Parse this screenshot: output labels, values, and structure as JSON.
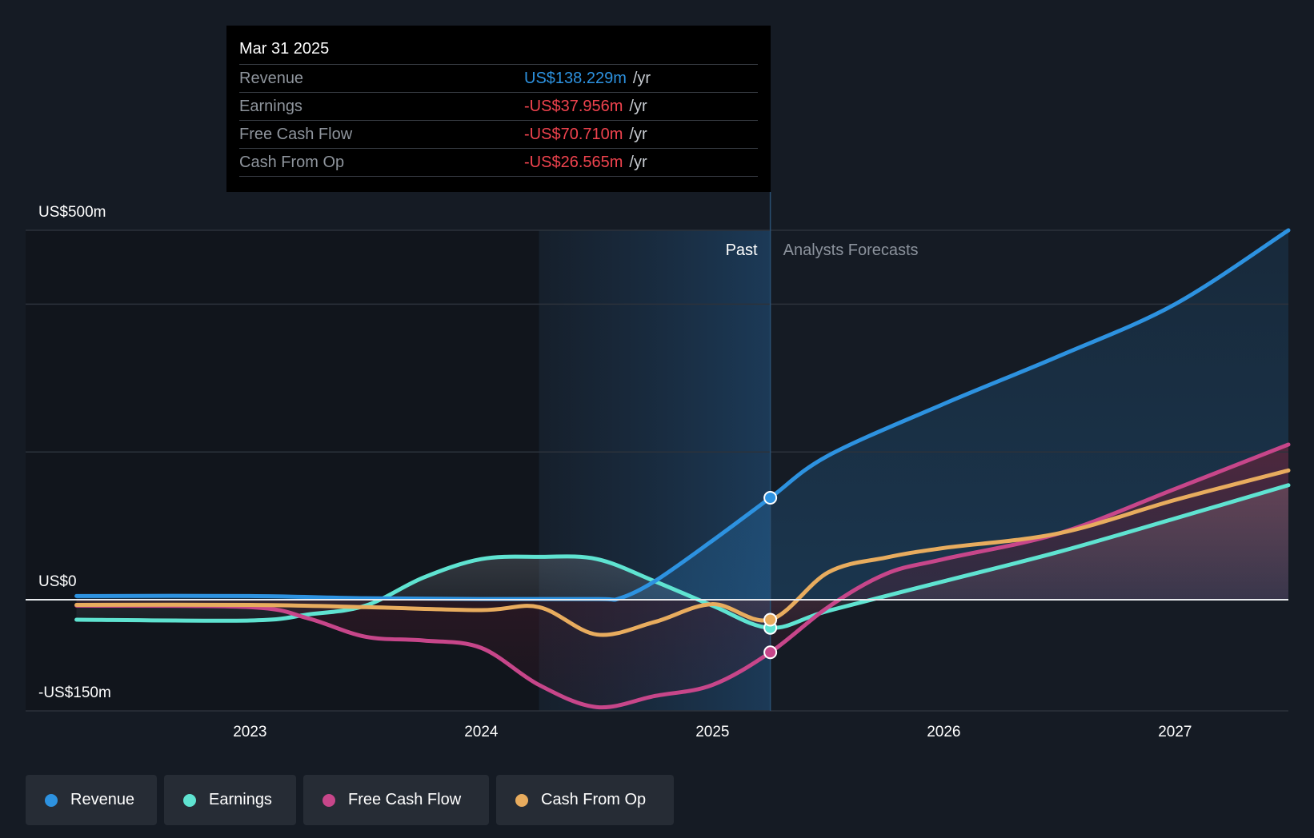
{
  "tooltip": {
    "date": "Mar 31 2025",
    "rows": [
      {
        "label": "Revenue",
        "value": "US$138.229m",
        "unit": "/yr",
        "color": "#2d92e0"
      },
      {
        "label": "Earnings",
        "value": "-US$37.956m",
        "unit": "/yr",
        "color": "#f0434e"
      },
      {
        "label": "Free Cash Flow",
        "value": "-US$70.710m",
        "unit": "/yr",
        "color": "#f0434e"
      },
      {
        "label": "Cash From Op",
        "value": "-US$26.565m",
        "unit": "/yr",
        "color": "#f0434e"
      }
    ]
  },
  "regions": {
    "past_label": "Past",
    "forecast_label": "Analysts Forecasts"
  },
  "legend": [
    {
      "label": "Revenue",
      "color": "#2d92e0"
    },
    {
      "label": "Earnings",
      "color": "#5fe3d1"
    },
    {
      "label": "Free Cash Flow",
      "color": "#c7468a"
    },
    {
      "label": "Cash From Op",
      "color": "#e8ac5e"
    }
  ],
  "chart_data": {
    "type": "line",
    "y_tick_labels": [
      {
        "value": 500,
        "label": "US$500m"
      },
      {
        "value": 0,
        "label": "US$0"
      },
      {
        "value": -150,
        "label": "-US$150m"
      }
    ],
    "x_tick_labels": [
      {
        "value": 2023.0,
        "label": "2023"
      },
      {
        "value": 2024.0,
        "label": "2024"
      },
      {
        "value": 2025.0,
        "label": "2025"
      },
      {
        "value": 2026.0,
        "label": "2026"
      },
      {
        "value": 2027.0,
        "label": "2027"
      }
    ],
    "ylim": [
      -150,
      500
    ],
    "xlim": [
      2022.03,
      2027.49
    ],
    "gridlines_y": [
      500,
      400,
      200,
      0,
      -150
    ],
    "past_highlight_x": [
      2024.25,
      2025.25
    ],
    "now_x": 2025.25,
    "series": [
      {
        "name": "Revenue",
        "color": "#2d92e0",
        "points": [
          [
            2022.25,
            5
          ],
          [
            2023.0,
            5
          ],
          [
            2023.5,
            2
          ],
          [
            2024.0,
            1
          ],
          [
            2024.5,
            1
          ],
          [
            2024.6,
            2
          ],
          [
            2024.75,
            25
          ],
          [
            2025.0,
            80
          ],
          [
            2025.25,
            138
          ],
          [
            2025.5,
            195
          ],
          [
            2026.0,
            265
          ],
          [
            2026.5,
            330
          ],
          [
            2027.0,
            400
          ],
          [
            2027.49,
            500
          ]
        ]
      },
      {
        "name": "Earnings",
        "color": "#5fe3d1",
        "points": [
          [
            2022.25,
            -27
          ],
          [
            2023.0,
            -28
          ],
          [
            2023.25,
            -20
          ],
          [
            2023.5,
            -8
          ],
          [
            2023.75,
            30
          ],
          [
            2024.0,
            55
          ],
          [
            2024.25,
            58
          ],
          [
            2024.5,
            55
          ],
          [
            2024.75,
            25
          ],
          [
            2025.0,
            -8
          ],
          [
            2025.25,
            -38
          ],
          [
            2025.5,
            -15
          ],
          [
            2026.0,
            25
          ],
          [
            2026.5,
            65
          ],
          [
            2027.0,
            110
          ],
          [
            2027.49,
            155
          ]
        ]
      },
      {
        "name": "Free Cash Flow",
        "color": "#c7468a",
        "points": [
          [
            2022.25,
            -8
          ],
          [
            2023.0,
            -10
          ],
          [
            2023.25,
            -25
          ],
          [
            2023.5,
            -50
          ],
          [
            2023.75,
            -55
          ],
          [
            2024.0,
            -65
          ],
          [
            2024.25,
            -115
          ],
          [
            2024.5,
            -145
          ],
          [
            2024.75,
            -130
          ],
          [
            2025.0,
            -115
          ],
          [
            2025.25,
            -71
          ],
          [
            2025.5,
            -10
          ],
          [
            2025.75,
            35
          ],
          [
            2026.0,
            55
          ],
          [
            2026.5,
            90
          ],
          [
            2027.0,
            150
          ],
          [
            2027.49,
            210
          ]
        ]
      },
      {
        "name": "Cash From Op",
        "color": "#e8ac5e",
        "points": [
          [
            2022.25,
            -7
          ],
          [
            2023.0,
            -7
          ],
          [
            2023.5,
            -10
          ],
          [
            2024.0,
            -14
          ],
          [
            2024.25,
            -10
          ],
          [
            2024.5,
            -47
          ],
          [
            2024.75,
            -30
          ],
          [
            2025.0,
            -6
          ],
          [
            2025.25,
            -27
          ],
          [
            2025.5,
            37
          ],
          [
            2025.75,
            57
          ],
          [
            2026.0,
            70
          ],
          [
            2026.5,
            90
          ],
          [
            2027.0,
            135
          ],
          [
            2027.49,
            175
          ]
        ]
      }
    ]
  }
}
